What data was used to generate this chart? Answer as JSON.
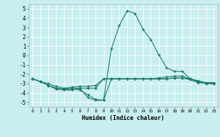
{
  "x": [
    0,
    1,
    2,
    3,
    4,
    5,
    6,
    7,
    8,
    9,
    10,
    11,
    12,
    13,
    14,
    15,
    16,
    17,
    18,
    19,
    20,
    21,
    22,
    23
  ],
  "line1": [
    -2.5,
    -2.8,
    -3.0,
    -3.3,
    -3.5,
    -3.4,
    -3.3,
    -3.3,
    -3.2,
    -2.5,
    -2.5,
    -2.5,
    -2.5,
    -2.5,
    -2.5,
    -2.5,
    -2.4,
    -2.3,
    -2.2,
    -2.2,
    -2.5,
    -2.7,
    -2.9,
    -2.9
  ],
  "line2": [
    -2.5,
    -2.8,
    -3.2,
    -3.5,
    -3.6,
    -3.5,
    -3.5,
    -3.5,
    -3.5,
    -2.5,
    -2.5,
    -2.5,
    -2.5,
    -2.5,
    -2.5,
    -2.5,
    -2.5,
    -2.5,
    -2.4,
    -2.4,
    -2.5,
    -2.8,
    -3.0,
    -3.0
  ],
  "line3": [
    -2.5,
    -2.8,
    -3.2,
    -3.5,
    -3.6,
    -3.6,
    -3.7,
    -4.2,
    -4.7,
    -4.8,
    -2.5,
    -2.5,
    -2.5,
    -2.5,
    -2.5,
    -2.5,
    -2.5,
    -2.5,
    -2.4,
    -2.4,
    -2.6,
    -2.9,
    -3.0,
    -3.0
  ],
  "line4": [
    -2.5,
    -2.8,
    -3.2,
    -3.6,
    -3.7,
    -3.7,
    -3.5,
    -4.5,
    -4.8,
    -4.8,
    0.7,
    3.2,
    4.8,
    4.5,
    2.8,
    1.7,
    0.1,
    -1.3,
    -1.7,
    -1.7,
    -2.5,
    -2.8,
    -3.0,
    -3.0
  ],
  "color": "#1a7a6a",
  "bg_color": "#c8eef0",
  "grid_color": "#ffffff",
  "xlabel": "Humidex (Indice chaleur)",
  "ylim": [
    -5.5,
    5.5
  ],
  "xlim": [
    -0.5,
    23.5
  ],
  "yticks": [
    -5,
    -4,
    -3,
    -2,
    -1,
    0,
    1,
    2,
    3,
    4,
    5
  ],
  "xticks": [
    0,
    1,
    2,
    3,
    4,
    5,
    6,
    7,
    8,
    9,
    10,
    11,
    12,
    13,
    14,
    15,
    16,
    17,
    18,
    19,
    20,
    21,
    22,
    23
  ]
}
